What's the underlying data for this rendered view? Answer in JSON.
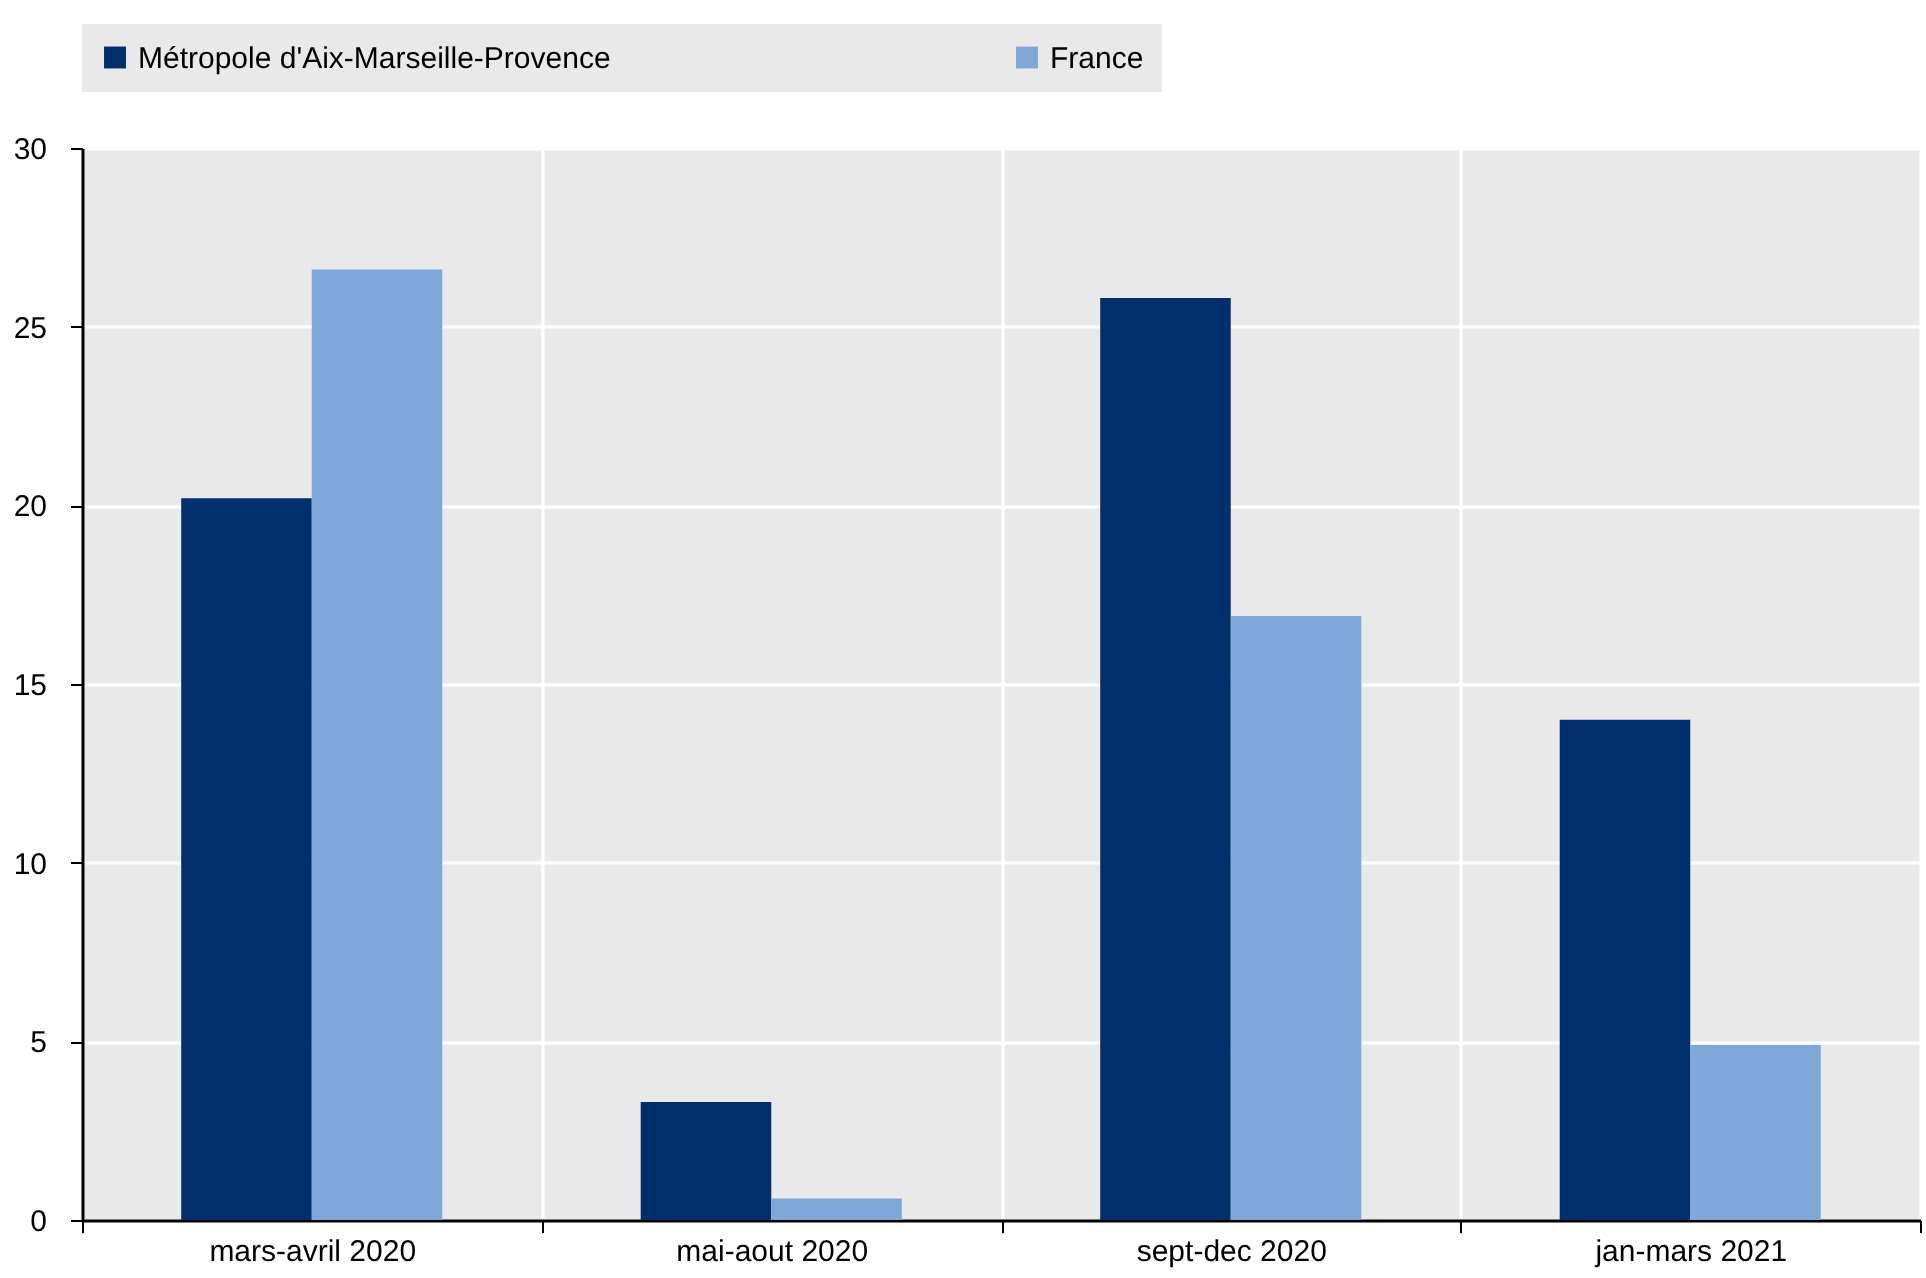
{
  "chart_data": {
    "type": "bar",
    "categories": [
      "mars-avril 2020",
      "mai-aout 2020",
      "sept-dec 2020",
      "jan-mars 2021"
    ],
    "series": [
      {
        "name": "Métropole d'Aix-Marseille-Provence",
        "color": "#002f6c",
        "values": [
          20.2,
          3.3,
          25.8,
          14.0
        ]
      },
      {
        "name": "France",
        "color": "#7fa8d9",
        "values": [
          26.6,
          0.6,
          16.9,
          4.9
        ]
      }
    ],
    "ylim": [
      0,
      30
    ],
    "yticks": [
      0,
      5,
      10,
      15,
      20,
      25,
      30
    ],
    "grid": true,
    "legend": "top"
  }
}
